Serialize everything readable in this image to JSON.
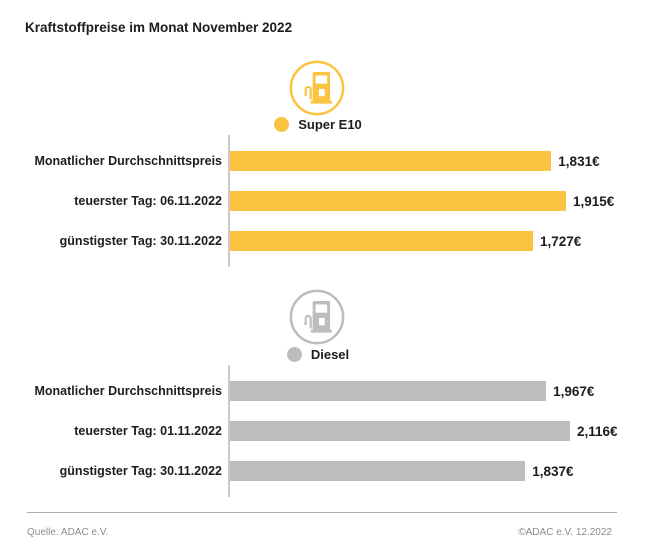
{
  "title": "Kraftstoffpreise im Monat November 2022",
  "colors": {
    "super_e10_yellow": "#FBC440",
    "diesel_gray": "#BDBDBD",
    "text_dark": "#1D1D1B",
    "axis_line": "#CBCBCB",
    "footer_gray": "#8C8C8C"
  },
  "footer": {
    "source": "Quelle: ADAC e.V.",
    "copyright": "©ADAC e.V. 12.2022"
  },
  "chart_data": [
    {
      "type": "bar",
      "orientation": "horizontal",
      "title": "Super E10",
      "icon": "fuel-pump-icon",
      "color": "#FBC440",
      "categories": [
        "Monatlicher Durchschnittspreis",
        "teuerster Tag: 06.11.2022",
        "günstigster Tag: 30.11.2022"
      ],
      "values": [
        1.831,
        1.915,
        1.727
      ],
      "value_labels": [
        "1,831€",
        "1,915€",
        "1,727€"
      ],
      "unit": "€",
      "grid": false,
      "legend_position": "top"
    },
    {
      "type": "bar",
      "orientation": "horizontal",
      "title": "Diesel",
      "icon": "fuel-pump-icon",
      "color": "#BDBDBD",
      "categories": [
        "Monatlicher Durchschnittspreis",
        "teuerster Tag: 01.11.2022",
        "günstigster Tag: 30.11.2022"
      ],
      "values": [
        1.967,
        2.116,
        1.837
      ],
      "value_labels": [
        "1,967€",
        "2,116€",
        "1,837€"
      ],
      "unit": "€",
      "grid": false,
      "legend_position": "top"
    }
  ]
}
